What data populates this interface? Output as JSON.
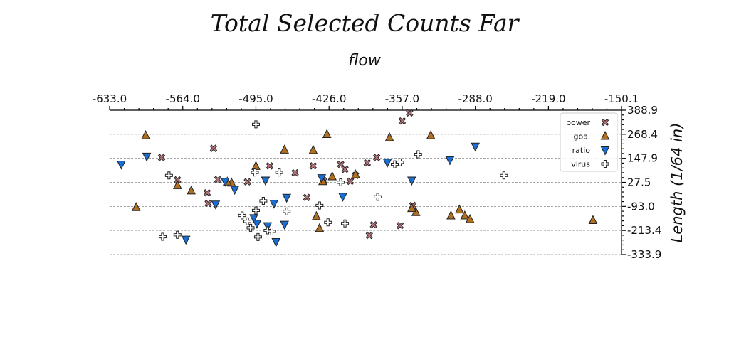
{
  "chart_data": {
    "type": "scatter",
    "title": "Total Selected Counts Far",
    "subtitle": "flow",
    "xlabel": "",
    "ylabel": "Length (1/64 in)",
    "xlim": [
      -633.0,
      -150.1
    ],
    "ylim": [
      -333.9,
      388.9
    ],
    "x_ticks": [
      "-633.0",
      "-564.0",
      "-495.0",
      "-426.0",
      "-357.0",
      "-288.0",
      "-219.0",
      "-150.1"
    ],
    "y_ticks": [
      "-333.9",
      "-213.4",
      "-93.0",
      "27.5",
      "147.9",
      "268.4",
      "388.9"
    ],
    "x_axis_position": "top",
    "y_axis_position": "right",
    "grid": "horizontal dashed",
    "legend_position": "top-right",
    "series": [
      {
        "name": "power",
        "marker": "x",
        "color": "#b5737a",
        "points": [
          [
            -350,
            375
          ],
          [
            -357,
            335
          ],
          [
            -535,
            198
          ],
          [
            -584,
            152
          ],
          [
            -482,
            110
          ],
          [
            -415,
            118
          ],
          [
            -401,
            62
          ],
          [
            -406,
            33
          ],
          [
            -381,
            152
          ],
          [
            -411,
            93
          ],
          [
            -390,
            125
          ],
          [
            -441,
            110
          ],
          [
            -431,
            35
          ],
          [
            -458,
            75
          ],
          [
            -569,
            40
          ],
          [
            -503,
            30
          ],
          [
            -531,
            42
          ],
          [
            -541,
            -25
          ],
          [
            -447,
            -48
          ],
          [
            -540,
            -78
          ],
          [
            -384,
            -185
          ],
          [
            -347,
            -88
          ],
          [
            -388,
            -238
          ],
          [
            -359,
            -189
          ]
        ]
      },
      {
        "name": "goal",
        "marker": "^",
        "color": "#b07020",
        "points": [
          [
            -599,
            262
          ],
          [
            -428,
            268
          ],
          [
            -369,
            252
          ],
          [
            -330,
            262
          ],
          [
            -468,
            190
          ],
          [
            -441,
            188
          ],
          [
            -495,
            108
          ],
          [
            -423,
            56
          ],
          [
            -401,
            66
          ],
          [
            -432,
            32
          ],
          [
            -518,
            25
          ],
          [
            -522,
            30
          ],
          [
            -569,
            12
          ],
          [
            -556,
            -15
          ],
          [
            -608,
            -98
          ],
          [
            -438,
            -143
          ],
          [
            -344,
            -123
          ],
          [
            -348,
            -103
          ],
          [
            -311,
            -140
          ],
          [
            -298,
            -140
          ],
          [
            -293,
            -158
          ],
          [
            -303,
            -110
          ],
          [
            -435,
            -203
          ],
          [
            -177,
            -163
          ]
        ]
      },
      {
        "name": "ratio",
        "marker": "v",
        "color": "#1a6fd6",
        "points": [
          [
            -288,
            208
          ],
          [
            -312,
            140
          ],
          [
            -371,
            128
          ],
          [
            -622,
            118
          ],
          [
            -598,
            158
          ],
          [
            -486,
            38
          ],
          [
            -433,
            50
          ],
          [
            -348,
            38
          ],
          [
            -524,
            32
          ],
          [
            -515,
            -8
          ],
          [
            -466,
            -48
          ],
          [
            -478,
            -78
          ],
          [
            -497,
            -150
          ],
          [
            -494,
            -178
          ],
          [
            -484,
            -190
          ],
          [
            -468,
            -183
          ],
          [
            -413,
            -43
          ],
          [
            -533,
            -82
          ],
          [
            -561,
            -258
          ],
          [
            -476,
            -270
          ]
        ]
      },
      {
        "name": "virus",
        "marker": "P",
        "color": "#ffffff",
        "points": [
          [
            -359,
            128
          ],
          [
            -364,
            118
          ],
          [
            -495,
            318
          ],
          [
            -342,
            168
          ],
          [
            -577,
            62
          ],
          [
            -473,
            77
          ],
          [
            -496,
            77
          ],
          [
            -415,
            28
          ],
          [
            -380,
            -45
          ],
          [
            -488,
            -65
          ],
          [
            -435,
            -88
          ],
          [
            -495,
            -113
          ],
          [
            -508,
            -138
          ],
          [
            -503,
            -168
          ],
          [
            -484,
            -213
          ],
          [
            -480,
            -218
          ],
          [
            -466,
            -118
          ],
          [
            -500,
            -200
          ],
          [
            -427,
            -173
          ],
          [
            -569,
            -235
          ],
          [
            -583,
            -245
          ],
          [
            -411,
            -178
          ],
          [
            -493,
            -246
          ],
          [
            -261,
            62
          ]
        ]
      }
    ]
  }
}
